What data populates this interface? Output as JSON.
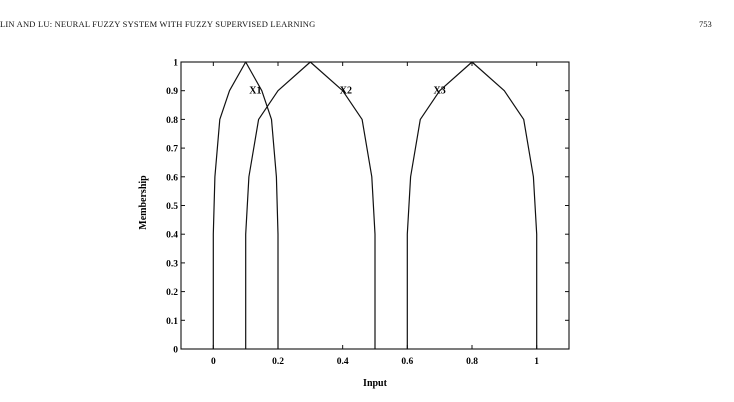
{
  "header": {
    "running_title": "LIN AND LU: NEURAL FUZZY SYSTEM WITH FUZZY SUPERVISED LEARNING",
    "page_number": "753"
  },
  "chart_data": {
    "type": "line",
    "title": "",
    "xlabel": "Input",
    "ylabel": "Membership",
    "xlim": [
      -0.1,
      1.1
    ],
    "ylim": [
      0,
      1
    ],
    "x_ticks": [
      0,
      0.2,
      0.4,
      0.6,
      0.8,
      1
    ],
    "x_tick_labels": [
      "0",
      "0.2",
      "0.4",
      "0.6",
      "0.8",
      "1"
    ],
    "y_ticks": [
      0,
      0.1,
      0.2,
      0.3,
      0.4,
      0.5,
      0.6,
      0.7,
      0.8,
      0.9,
      1
    ],
    "y_tick_labels": [
      "0",
      "0.1",
      "0.2",
      "0.3",
      "0.4",
      "0.5",
      "0.6",
      "0.7",
      "0.8",
      "0.9",
      "1"
    ],
    "grid": false,
    "series": [
      {
        "name": "X1",
        "x": [
          0,
          0,
          0.005,
          0.02,
          0.05,
          0.1,
          0.15,
          0.18,
          0.195,
          0.2,
          0.2
        ],
        "y": [
          0,
          0.4,
          0.6,
          0.8,
          0.9,
          1,
          0.9,
          0.8,
          0.6,
          0.4,
          0
        ],
        "label_at": [
          0.13,
          0.9
        ]
      },
      {
        "name": "X2",
        "x": [
          0.1,
          0.1,
          0.11,
          0.14,
          0.2,
          0.3,
          0.4,
          0.46,
          0.49,
          0.5,
          0.5
        ],
        "y": [
          0,
          0.4,
          0.6,
          0.8,
          0.9,
          1,
          0.9,
          0.8,
          0.6,
          0.4,
          0
        ],
        "label_at": [
          0.41,
          0.9
        ]
      },
      {
        "name": "X3",
        "x": [
          0.6,
          0.6,
          0.61,
          0.64,
          0.7,
          0.8,
          0.9,
          0.96,
          0.99,
          1,
          1
        ],
        "y": [
          0,
          0.4,
          0.6,
          0.8,
          0.9,
          1,
          0.9,
          0.8,
          0.6,
          0.4,
          0
        ],
        "label_at": [
          0.7,
          0.9
        ]
      }
    ]
  }
}
